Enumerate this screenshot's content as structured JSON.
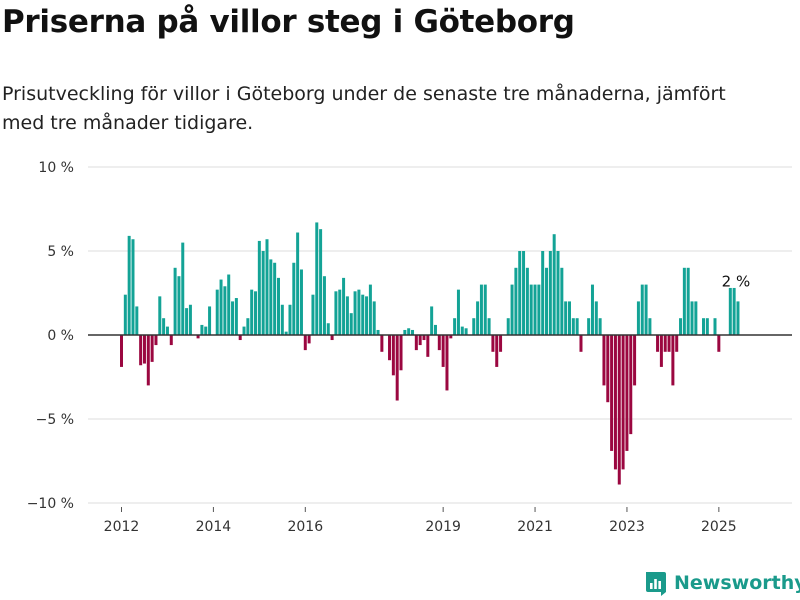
{
  "title": "Priserna på villor steg i Göteborg",
  "subtitle": "Prisutveckling för villor i Göteborg under de senaste tre månaderna, jämfört med tre månader tidigare.",
  "brand": {
    "name": "Newsworthy",
    "icon": "bar-chart-logo-icon"
  },
  "colors": {
    "positive": "#13a396",
    "negative": "#9b0740",
    "zero_line": "#333333",
    "grid": "#dddddd"
  },
  "chart_data": {
    "type": "bar",
    "ylim": [
      -10,
      10
    ],
    "y_ticks": [
      {
        "value": 10,
        "label": "10 %"
      },
      {
        "value": 5,
        "label": "5 %"
      },
      {
        "value": 0,
        "label": "0 %"
      },
      {
        "value": -5,
        "label": "−5 %"
      },
      {
        "value": -10,
        "label": "−10 %"
      }
    ],
    "x_ticks": [
      {
        "value": 2012,
        "label": "2012"
      },
      {
        "value": 2014,
        "label": "2014"
      },
      {
        "value": 2016,
        "label": "2016"
      },
      {
        "value": 2019,
        "label": "2019"
      },
      {
        "value": 2021,
        "label": "2021"
      },
      {
        "value": 2023,
        "label": "2023"
      },
      {
        "value": 2025,
        "label": "2025"
      }
    ],
    "x_start": 2012,
    "step_years": 0.08333,
    "grid": true,
    "values": [
      -1.9,
      2.4,
      5.9,
      5.7,
      1.7,
      -1.8,
      -1.7,
      -3.0,
      -1.6,
      -0.6,
      2.3,
      1.0,
      0.5,
      -0.6,
      4.0,
      3.5,
      5.5,
      1.6,
      1.8,
      0.0,
      -0.2,
      0.6,
      0.5,
      1.7,
      0.0,
      2.7,
      3.3,
      2.9,
      3.6,
      2.0,
      2.2,
      -0.3,
      0.5,
      1.0,
      2.7,
      2.6,
      5.6,
      5.0,
      5.7,
      4.5,
      4.3,
      3.4,
      1.8,
      0.2,
      1.8,
      4.3,
      6.1,
      3.9,
      -0.9,
      -0.5,
      2.4,
      6.7,
      6.3,
      3.5,
      0.7,
      -0.3,
      2.6,
      2.7,
      3.4,
      2.3,
      1.3,
      2.6,
      2.7,
      2.4,
      2.3,
      3.0,
      2.0,
      0.3,
      -1.0,
      0.0,
      -1.5,
      -2.4,
      -3.9,
      -2.1,
      0.3,
      0.4,
      0.3,
      -0.9,
      -0.6,
      -0.3,
      -1.3,
      1.7,
      0.6,
      -0.9,
      -1.9,
      -3.3,
      -0.2,
      1.0,
      2.7,
      0.5,
      0.4,
      0.0,
      1.0,
      2.0,
      3.0,
      3.0,
      1.0,
      -1.0,
      -1.9,
      -1.0,
      0.0,
      1.0,
      3.0,
      4.0,
      5.0,
      5.0,
      4.0,
      3.0,
      3.0,
      3.0,
      5.0,
      4.0,
      5.0,
      6.0,
      5.0,
      4.0,
      2.0,
      2.0,
      1.0,
      1.0,
      -1.0,
      0.0,
      1.0,
      3.0,
      2.0,
      1.0,
      -3.0,
      -4.0,
      -6.9,
      -8.0,
      -8.9,
      -8.0,
      -6.9,
      -5.9,
      -3.0,
      2.0,
      3.0,
      3.0,
      1.0,
      0.0,
      -1.0,
      -1.9,
      -1.0,
      -1.0,
      -3.0,
      -1.0,
      1.0,
      4.0,
      4.0,
      2.0,
      2.0,
      0.0,
      1.0,
      1.0,
      0.0,
      1.0,
      -1.0,
      0.0,
      0.0,
      2.8,
      2.8,
      2.0
    ],
    "annotation": {
      "text": "2 %",
      "value": 2.0
    }
  }
}
